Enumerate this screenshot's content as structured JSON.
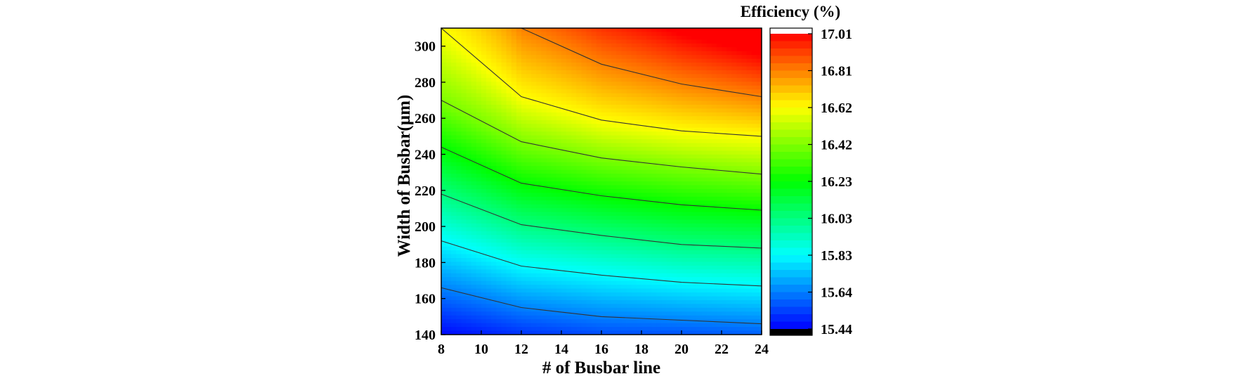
{
  "chart_data": {
    "type": "heatmap",
    "subtype": "filled-contour",
    "xlabel": "# of Busbar line",
    "ylabel": "Width of Busbar(µm)",
    "xlim": [
      8,
      24
    ],
    "ylim": [
      140,
      310
    ],
    "xticks": [
      8,
      10,
      12,
      14,
      16,
      18,
      20,
      22,
      24
    ],
    "yticks": [
      140,
      160,
      180,
      200,
      220,
      240,
      260,
      280,
      300
    ],
    "colorbar": {
      "title": "Efficiency (%)",
      "min": 15.44,
      "max": 17.01,
      "ticks": [
        "15.44",
        "15.64",
        "15.83",
        "16.03",
        "16.23",
        "16.42",
        "16.62",
        "16.81",
        "17.01"
      ],
      "colormap": [
        "#0000ff",
        "#00ffff",
        "#00ff00",
        "#ffff00",
        "#ff0000"
      ],
      "below_color": "#000000",
      "above_color": "#ffffff"
    },
    "contour_lines": {
      "x": [
        8,
        12,
        16,
        20,
        24
      ],
      "levels": [
        {
          "level": 15.64,
          "y": [
            166,
            155,
            150,
            148,
            146
          ]
        },
        {
          "level": 15.83,
          "y": [
            192,
            178,
            173,
            169,
            167
          ]
        },
        {
          "level": 16.03,
          "y": [
            218,
            201,
            195,
            190,
            188
          ]
        },
        {
          "level": 16.23,
          "y": [
            244,
            224,
            217,
            212,
            209
          ]
        },
        {
          "level": 16.42,
          "y": [
            270,
            247,
            238,
            233,
            229
          ]
        },
        {
          "level": 16.62,
          "y": [
            310,
            272,
            259,
            253,
            250
          ]
        },
        {
          "level": 16.81,
          "y": [
            372,
            310,
            290,
            279,
            272
          ]
        }
      ]
    },
    "grid": false
  }
}
